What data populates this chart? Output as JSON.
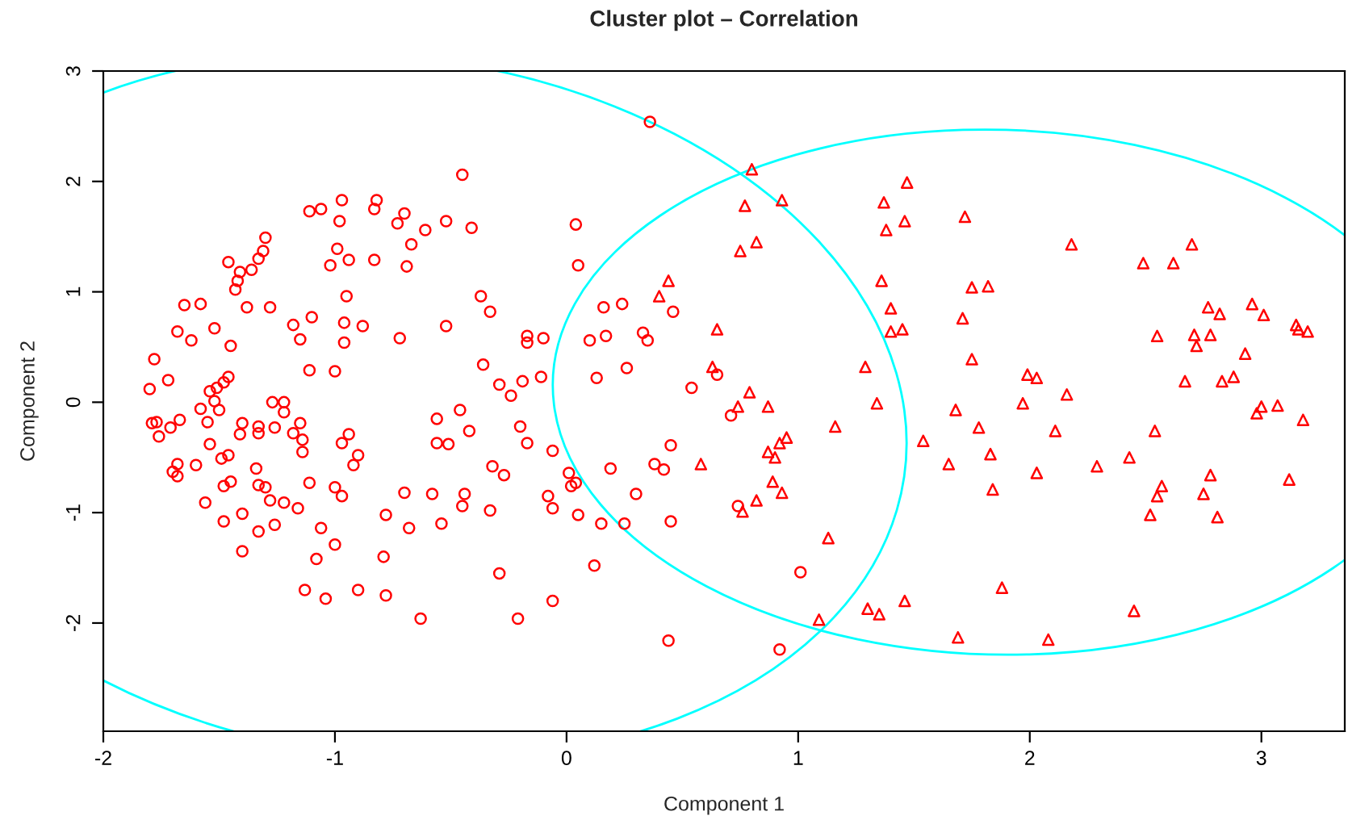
{
  "chart_data": {
    "type": "scatter",
    "title": "Cluster plot – Correlation",
    "xlabel": "Component 1",
    "ylabel": "Component 2",
    "xlim": [
      -2.0,
      3.36
    ],
    "ylim": [
      -2.98,
      3.0
    ],
    "xticks": [
      -2,
      -1,
      0,
      1,
      2,
      3
    ],
    "yticks": [
      -2,
      -1,
      0,
      1,
      2,
      3
    ],
    "grid": false,
    "legend": false,
    "series": [
      {
        "marker": "circle",
        "color": "#ff0000",
        "x": [
          -0.97,
          -0.82,
          -1.11,
          -1.06,
          -0.98,
          -0.83,
          -0.7,
          -0.73,
          -0.61,
          -0.52,
          -1.3,
          -1.31,
          -1.33,
          -1.36,
          -1.41,
          -1.42,
          -1.43,
          -1.46,
          -0.99,
          -0.94,
          -1.02,
          -0.83,
          -0.67,
          -0.69,
          -0.95,
          -1.65,
          -1.58,
          -1.38,
          -1.28,
          -1.68,
          -1.52,
          -1.62,
          -1.45,
          -1.18,
          -1.1,
          -0.96,
          -0.88,
          -1.15,
          -0.96,
          -0.72,
          -0.52,
          -1.78,
          -1.72,
          -1.8,
          -1.46,
          -1.48,
          -1.51,
          -1.54,
          -1.52,
          -1.58,
          -1.5,
          -1.11,
          -1.0,
          -1.27,
          -1.22,
          -1.22,
          -1.79,
          -1.77,
          -1.76,
          -1.71,
          -1.67,
          -1.55,
          -1.4,
          -1.41,
          -1.33,
          -1.33,
          -1.26,
          -1.15,
          -1.18,
          -1.14,
          -1.14,
          -0.97,
          -0.94,
          -0.9,
          -0.92,
          -0.56,
          -0.56,
          -1.54,
          -1.46,
          -1.49,
          -1.68,
          -1.6,
          -1.7,
          -1.68,
          -1.34,
          -1.45,
          -1.48,
          -1.33,
          -1.3,
          -1.11,
          -1.0,
          -0.97,
          -0.7,
          -0.58,
          -1.56,
          -1.28,
          -1.22,
          -1.16,
          -1.4,
          -1.48,
          -1.33,
          -1.26,
          -1.06,
          -0.78,
          -0.68,
          -0.54,
          -1.4,
          -1.0,
          -1.08,
          -0.79,
          -1.13,
          -1.04,
          -0.9,
          -0.78,
          -0.63,
          -0.45,
          -0.41,
          0.04,
          0.05,
          -0.37,
          -0.33,
          -0.17,
          -0.17,
          -0.1,
          0.16,
          0.24,
          0.1,
          0.17,
          0.33,
          0.35,
          0.46,
          -0.36,
          -0.29,
          -0.19,
          -0.11,
          -0.24,
          0.13,
          0.26,
          0.54,
          0.65,
          0.71,
          -0.46,
          -0.42,
          -0.51,
          -0.2,
          -0.17,
          -0.06,
          -0.32,
          -0.27,
          0.01,
          0.02,
          0.04,
          0.19,
          0.38,
          0.42,
          0.45,
          -0.44,
          -0.45,
          -0.33,
          -0.08,
          -0.06,
          0.05,
          0.15,
          0.25,
          0.3,
          0.45,
          0.74,
          -0.29,
          -0.06,
          0.12,
          -0.21,
          0.44,
          0.36,
          0.92,
          1.01
        ],
        "values": [
          1.83,
          1.83,
          1.73,
          1.75,
          1.64,
          1.75,
          1.71,
          1.62,
          1.56,
          1.64,
          1.49,
          1.37,
          1.3,
          1.2,
          1.18,
          1.1,
          1.02,
          1.27,
          1.39,
          1.29,
          1.24,
          1.29,
          1.43,
          1.23,
          0.96,
          0.88,
          0.89,
          0.86,
          0.86,
          0.64,
          0.67,
          0.56,
          0.51,
          0.7,
          0.77,
          0.72,
          0.69,
          0.57,
          0.54,
          0.58,
          0.69,
          0.39,
          0.2,
          0.12,
          0.23,
          0.18,
          0.13,
          0.1,
          0.01,
          -0.06,
          -0.07,
          0.29,
          0.28,
          0.0,
          0.0,
          -0.09,
          -0.19,
          -0.18,
          -0.31,
          -0.23,
          -0.16,
          -0.18,
          -0.19,
          -0.29,
          -0.22,
          -0.28,
          -0.23,
          -0.19,
          -0.28,
          -0.34,
          -0.45,
          -0.37,
          -0.29,
          -0.48,
          -0.57,
          -0.15,
          -0.37,
          -0.38,
          -0.48,
          -0.51,
          -0.56,
          -0.57,
          -0.63,
          -0.67,
          -0.6,
          -0.72,
          -0.76,
          -0.75,
          -0.77,
          -0.73,
          -0.77,
          -0.85,
          -0.82,
          -0.83,
          -0.91,
          -0.89,
          -0.91,
          -0.96,
          -1.01,
          -1.08,
          -1.17,
          -1.11,
          -1.14,
          -1.02,
          -1.14,
          -1.1,
          -1.35,
          -1.29,
          -1.42,
          -1.4,
          -1.7,
          -1.78,
          -1.7,
          -1.75,
          -1.96,
          2.06,
          1.58,
          1.61,
          1.24,
          0.96,
          0.82,
          0.6,
          0.54,
          0.58,
          0.86,
          0.89,
          0.56,
          0.6,
          0.63,
          0.56,
          0.82,
          0.34,
          0.16,
          0.19,
          0.23,
          0.06,
          0.22,
          0.31,
          0.13,
          0.25,
          -0.12,
          -0.07,
          -0.26,
          -0.38,
          -0.22,
          -0.37,
          -0.44,
          -0.58,
          -0.66,
          -0.64,
          -0.76,
          -0.73,
          -0.6,
          -0.56,
          -0.61,
          -0.39,
          -0.83,
          -0.94,
          -0.98,
          -0.85,
          -0.96,
          -1.02,
          -1.1,
          -1.1,
          -0.83,
          -1.08,
          -0.94,
          -1.55,
          -1.8,
          -1.48,
          -1.96,
          -2.16,
          2.54,
          -2.24,
          -1.54
        ]
      },
      {
        "marker": "triangle",
        "color": "#ff0000",
        "x": [
          0.8,
          0.77,
          0.75,
          0.44,
          0.4,
          0.65,
          0.63,
          0.79,
          0.74,
          0.58,
          0.76,
          0.93,
          1.47,
          1.37,
          1.46,
          1.38,
          1.72,
          0.82,
          1.36,
          1.75,
          1.82,
          1.4,
          1.71,
          1.4,
          1.45,
          1.75,
          1.29,
          1.99,
          2.03,
          0.87,
          1.34,
          1.97,
          1.68,
          1.16,
          1.78,
          2.11,
          1.54,
          0.95,
          0.92,
          0.87,
          0.9,
          1.83,
          1.65,
          2.03,
          0.89,
          0.93,
          1.84,
          0.82,
          1.13,
          1.88,
          1.46,
          1.3,
          1.35,
          1.09,
          1.69,
          2.08,
          2.18,
          2.7,
          2.49,
          2.62,
          2.77,
          2.82,
          2.96,
          3.01,
          3.15,
          3.16,
          3.2,
          2.55,
          2.71,
          2.78,
          2.72,
          2.93,
          2.67,
          2.83,
          2.88,
          2.16,
          3.0,
          2.98,
          3.07,
          3.18,
          2.54,
          2.43,
          2.29,
          2.78,
          2.57,
          2.55,
          2.75,
          2.52,
          2.81,
          3.12,
          2.45
        ],
        "values": [
          2.11,
          1.78,
          1.37,
          1.1,
          0.96,
          0.66,
          0.32,
          0.09,
          -0.04,
          -0.56,
          -0.99,
          1.83,
          1.99,
          1.81,
          1.64,
          1.56,
          1.68,
          1.45,
          1.1,
          1.04,
          1.05,
          0.85,
          0.76,
          0.64,
          0.66,
          0.39,
          0.32,
          0.25,
          0.22,
          -0.04,
          -0.01,
          -0.01,
          -0.07,
          -0.22,
          -0.23,
          -0.26,
          -0.35,
          -0.32,
          -0.37,
          -0.45,
          -0.5,
          -0.47,
          -0.56,
          -0.64,
          -0.72,
          -0.82,
          -0.79,
          -0.89,
          -1.23,
          -1.68,
          -1.8,
          -1.87,
          -1.92,
          -1.97,
          -2.13,
          -2.15,
          1.43,
          1.43,
          1.26,
          1.26,
          0.86,
          0.8,
          0.89,
          0.79,
          0.7,
          0.66,
          0.64,
          0.6,
          0.61,
          0.61,
          0.51,
          0.44,
          0.19,
          0.19,
          0.23,
          0.07,
          -0.04,
          -0.1,
          -0.03,
          -0.16,
          -0.26,
          -0.5,
          -0.58,
          -0.66,
          -0.76,
          -0.85,
          -0.83,
          -1.02,
          -1.04,
          -0.7,
          -1.89
        ]
      }
    ]
  }
}
